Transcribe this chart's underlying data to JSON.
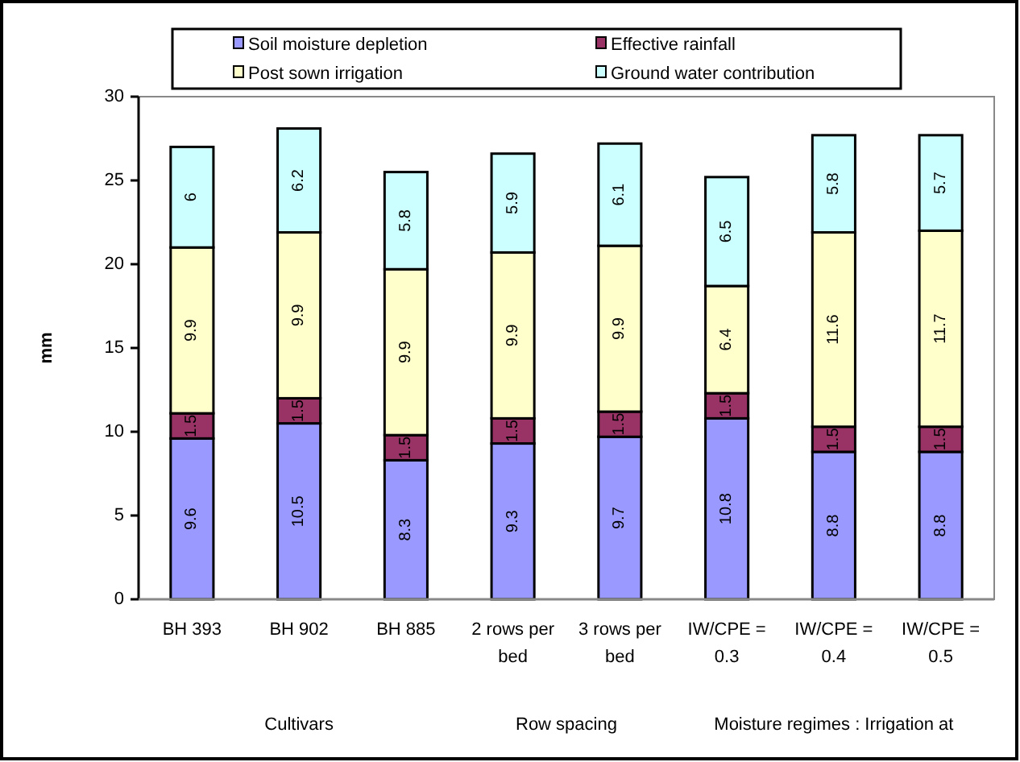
{
  "chart_data": {
    "type": "bar",
    "stacked": true,
    "ylabel": "mm",
    "categories": [
      "BH 393",
      "BH 902",
      "BH 885",
      "2 rows per bed",
      "3 rows per bed",
      "IW/CPE = 0.3",
      "IW/CPE = 0.4",
      "IW/CPE = 0.5"
    ],
    "series": [
      {
        "name": "Soil moisture depletion",
        "color": "#9999ff",
        "values": [
          9.6,
          10.5,
          8.3,
          9.3,
          9.7,
          10.8,
          8.8,
          8.8
        ]
      },
      {
        "name": "Effective rainfall",
        "color": "#993366",
        "values": [
          1.5,
          1.5,
          1.5,
          1.5,
          1.5,
          1.5,
          1.5,
          1.5
        ]
      },
      {
        "name": "Post sown irrigation",
        "color": "#ffffcc",
        "values": [
          9.9,
          9.9,
          9.9,
          9.9,
          9.9,
          6.4,
          11.6,
          11.7
        ]
      },
      {
        "name": "Ground water contribution",
        "color": "#ccffff",
        "values": [
          6,
          6.2,
          5.8,
          5.9,
          6.1,
          6.5,
          5.8,
          5.7
        ]
      }
    ],
    "ylim": [
      0,
      30
    ],
    "yticks": [
      0,
      5,
      10,
      15,
      20,
      25,
      30
    ],
    "grid": false,
    "legend": "top",
    "data_labels": true,
    "annotations": [
      "Cultivars",
      "Row spacing",
      "Moisture regimes : Irrigation at"
    ]
  }
}
